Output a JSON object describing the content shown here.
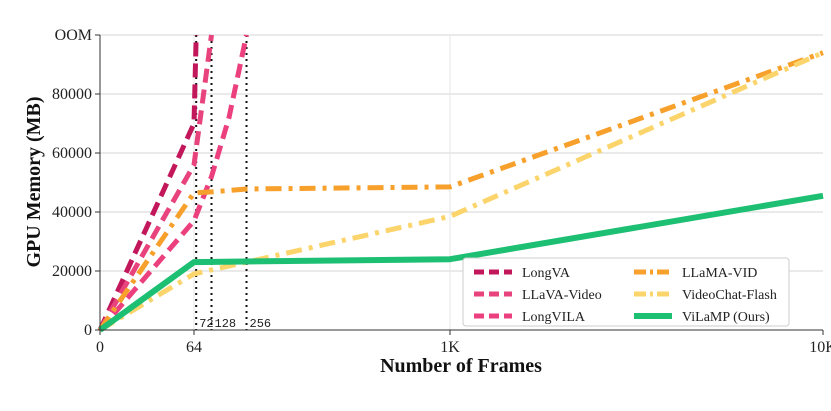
{
  "chart_data": {
    "type": "line",
    "title": "",
    "xlabel": "Number of Frames",
    "ylabel": "GPU Memory (MB)",
    "x_axis": {
      "scale": "piecewise",
      "ticks": [
        {
          "value": 0,
          "label": "0"
        },
        {
          "value": 64,
          "label": "64"
        },
        {
          "value": 1000,
          "label": "1K"
        },
        {
          "value": 10000,
          "label": "10K"
        }
      ],
      "xlim": [
        0,
        10000
      ]
    },
    "y_axis": {
      "ticks": [
        {
          "value": 0,
          "label": "0"
        },
        {
          "value": 20000,
          "label": "20000"
        },
        {
          "value": 40000,
          "label": "40000"
        },
        {
          "value": 60000,
          "label": "60000"
        },
        {
          "value": 80000,
          "label": "80000"
        },
        {
          "value": 100000,
          "label": "OOM"
        }
      ],
      "ylim": [
        0,
        100000
      ],
      "grid": true
    },
    "series": [
      {
        "name": "LongVA",
        "color": "#c2185b",
        "dash": "dash",
        "width": 5,
        "points": [
          [
            0,
            0
          ],
          [
            32,
            35000
          ],
          [
            64,
            70000
          ],
          [
            72,
            100000
          ]
        ]
      },
      {
        "name": "LLaVA-Video",
        "color": "#e8437c",
        "dash": "dash",
        "width": 5,
        "points": [
          [
            0,
            0
          ],
          [
            32,
            28000
          ],
          [
            64,
            56000
          ],
          [
            128,
            100000
          ]
        ]
      },
      {
        "name": "LongVILA",
        "color": "#ec3f7e",
        "dash": "dash",
        "width": 5,
        "points": [
          [
            0,
            0
          ],
          [
            64,
            37000
          ],
          [
            128,
            52000
          ],
          [
            192,
            72000
          ],
          [
            256,
            100000
          ]
        ]
      },
      {
        "name": "LLaMA-VID",
        "color": "#f7a02b",
        "dash": "dashdot",
        "width": 5,
        "points": [
          [
            0,
            0
          ],
          [
            64,
            46500
          ],
          [
            128,
            46800
          ],
          [
            256,
            47800
          ],
          [
            1000,
            48500
          ],
          [
            10000,
            94000
          ]
        ]
      },
      {
        "name": "VideoChat-Flash",
        "color": "#fbd46b",
        "dash": "dashdot",
        "width": 5,
        "points": [
          [
            0,
            0
          ],
          [
            64,
            19000
          ],
          [
            1000,
            38500
          ],
          [
            10000,
            94000
          ]
        ]
      },
      {
        "name": "ViLaMP (Ours)",
        "color": "#1dbf73",
        "dash": "solid",
        "width": 6,
        "points": [
          [
            0,
            0
          ],
          [
            64,
            23000
          ],
          [
            1000,
            24000
          ],
          [
            10000,
            45500
          ]
        ]
      }
    ],
    "vertical_markers": [
      {
        "x": 72,
        "label": "72"
      },
      {
        "x": 128,
        "label": "128"
      },
      {
        "x": 256,
        "label": "256"
      }
    ],
    "legend": {
      "position": "bottom-right",
      "columns": 2
    }
  }
}
